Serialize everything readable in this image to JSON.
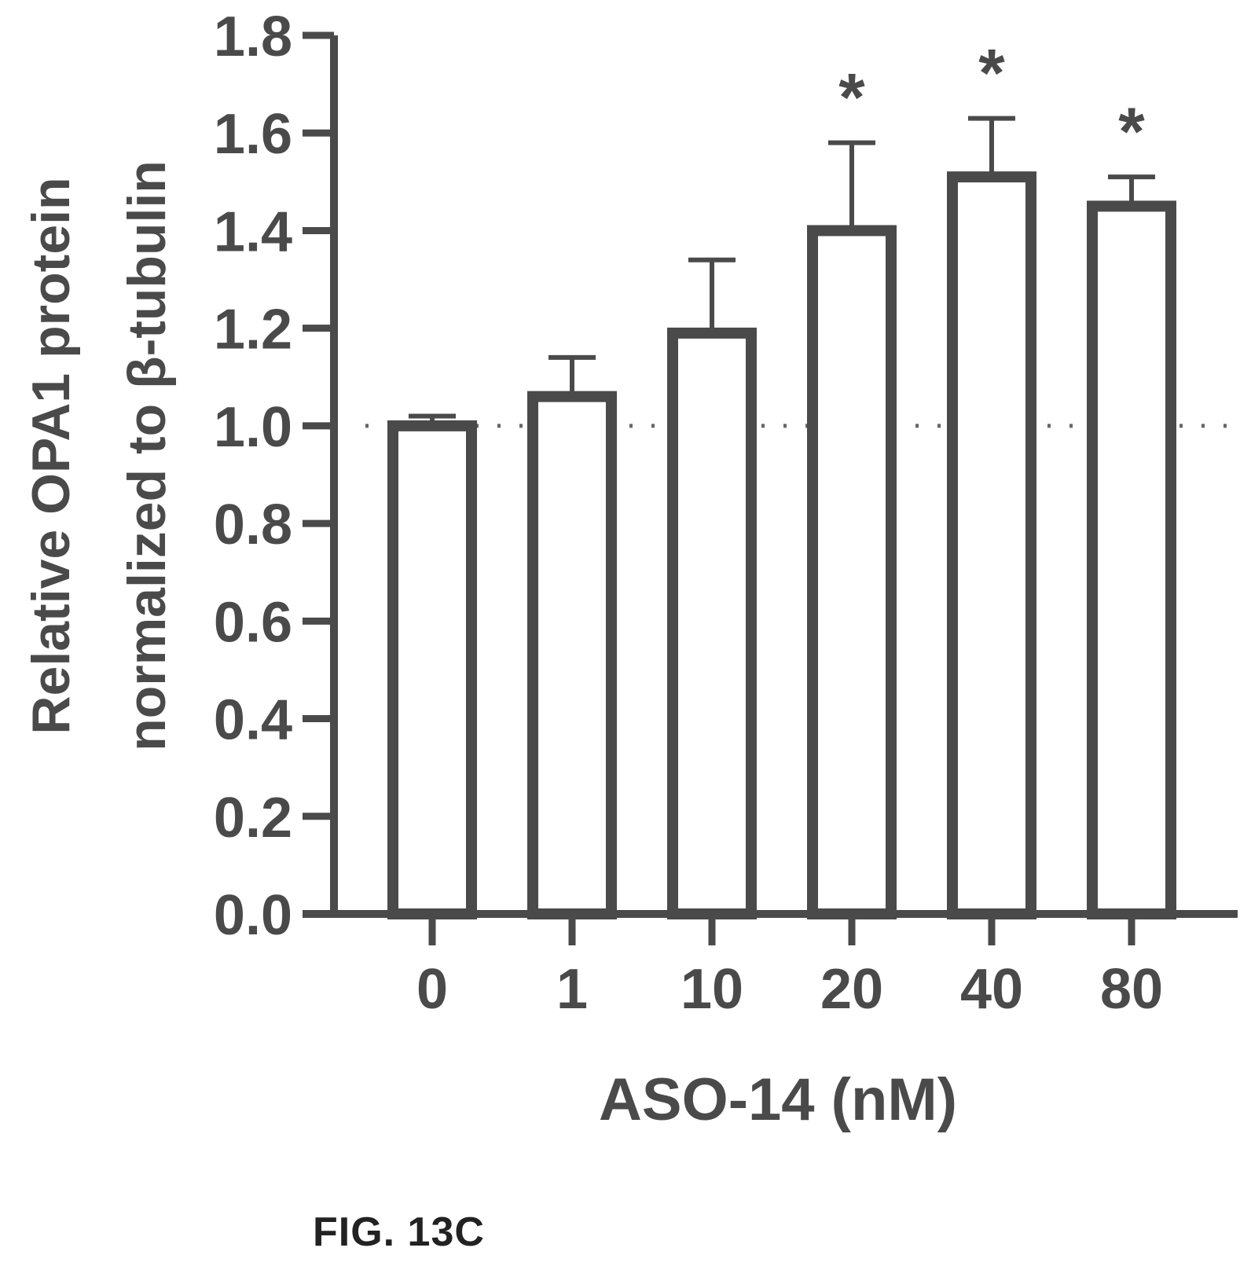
{
  "figure_label": "FIG. 13C",
  "chart_data": {
    "type": "bar",
    "title": "",
    "xlabel": "ASO-14 (nM)",
    "ylabel_lines": [
      "Relative OPA1 protein",
      "normalized to β-tubulin"
    ],
    "categories": [
      "0",
      "1",
      "10",
      "20",
      "40",
      "80"
    ],
    "values": [
      1.0,
      1.06,
      1.19,
      1.4,
      1.51,
      1.45
    ],
    "error_upper": [
      0.02,
      0.08,
      0.15,
      0.18,
      0.12,
      0.06
    ],
    "significance": [
      "",
      "",
      "",
      "*",
      "*",
      "*"
    ],
    "reference_line": 1.0,
    "ylim": [
      0,
      1.8
    ],
    "yticks": [
      "0.0",
      "0.2",
      "0.4",
      "0.6",
      "0.8",
      "1.0",
      "1.2",
      "1.4",
      "1.6",
      "1.8"
    ],
    "grid": false,
    "colors": {
      "bar_edge": "#4a4a4a",
      "bar_fill": "#ffffff",
      "text": "#4a4a4a"
    }
  }
}
